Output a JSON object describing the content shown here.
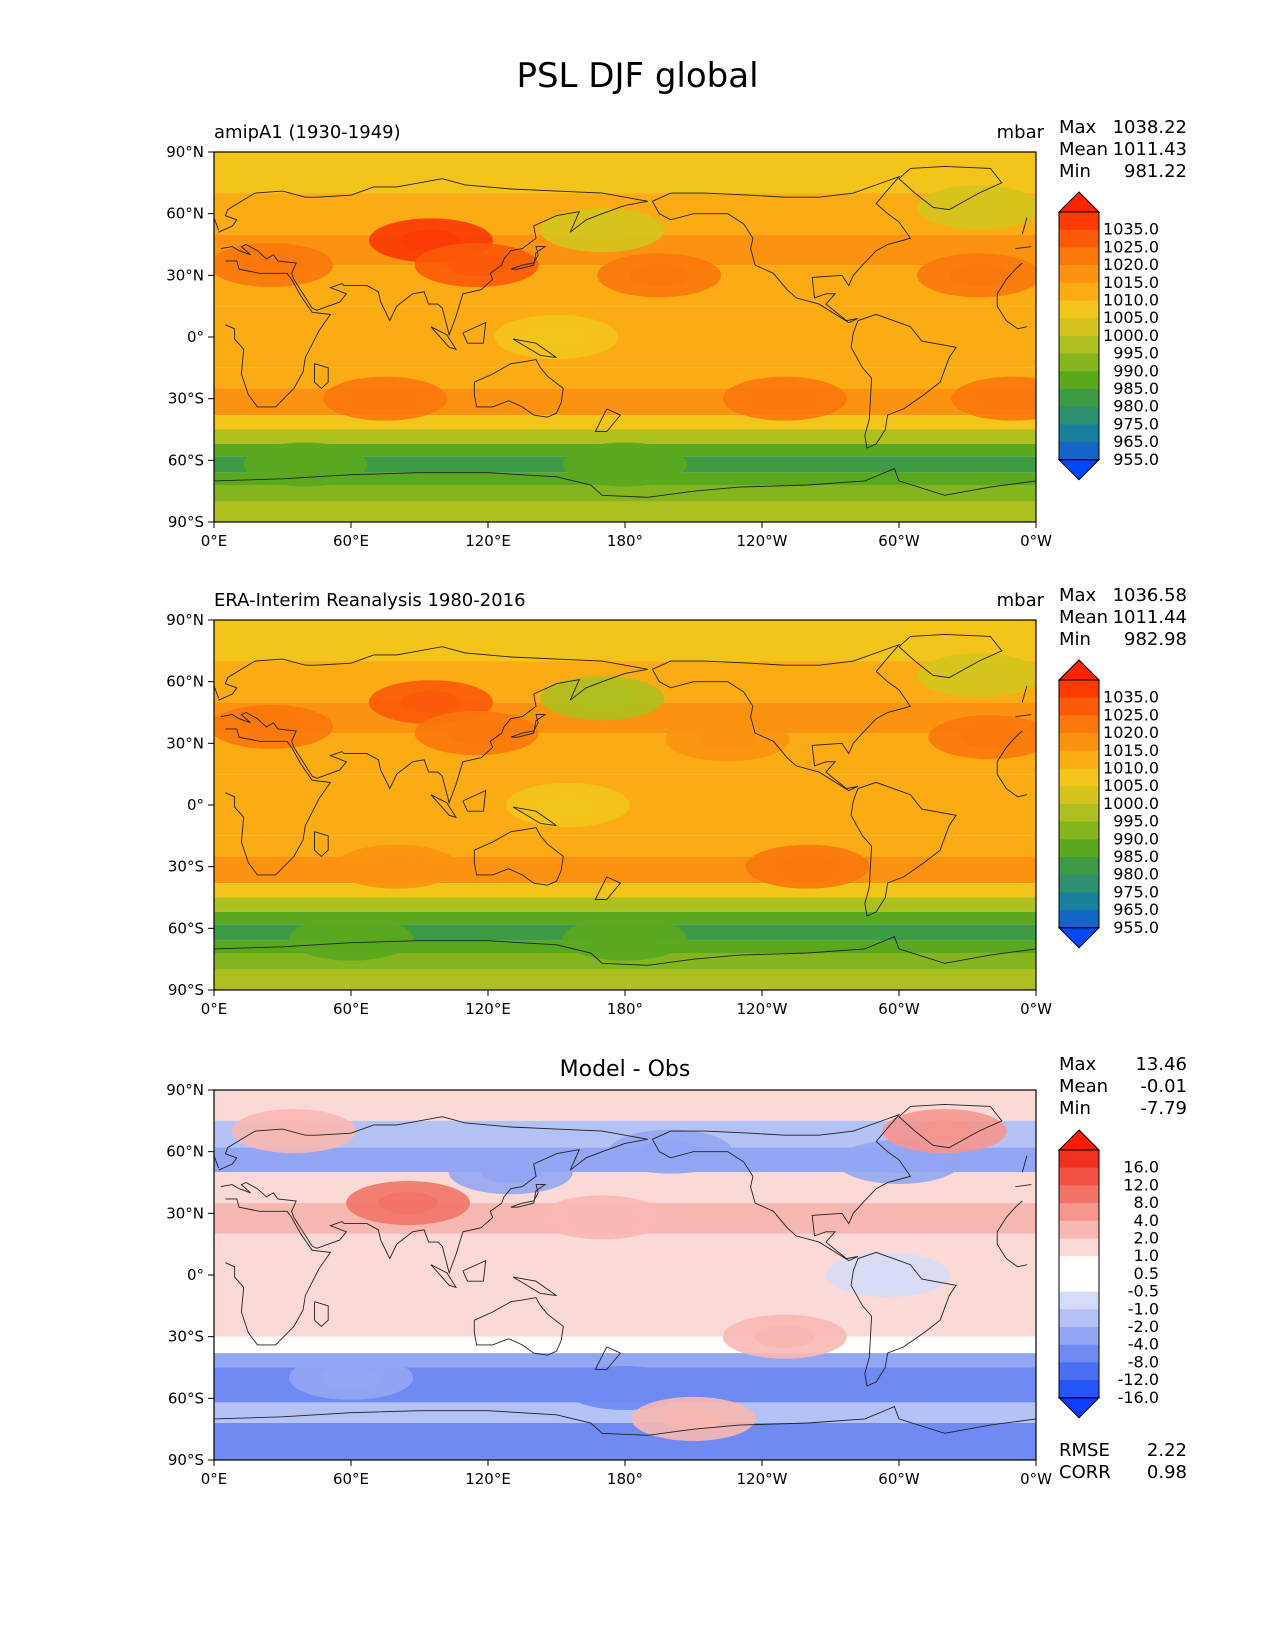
{
  "figure_title": "PSL DJF global",
  "x_ticks": [
    "0°E",
    "60°E",
    "120°E",
    "180°",
    "120°W",
    "60°W",
    "0°W"
  ],
  "y_ticks": [
    "90°N",
    "60°N",
    "30°N",
    "0°",
    "30°S",
    "60°S",
    "90°S"
  ],
  "panels": [
    {
      "left_title": "amipA1 (1930-1949)",
      "right_title": "mbar",
      "stats": {
        "max_label": "Max",
        "max": "1038.22",
        "mean_label": "Mean",
        "mean": "1011.43",
        "min_label": "Min",
        "min": "981.22"
      },
      "colorbar_labels": [
        "1035.0",
        "1025.0",
        "1020.0",
        "1015.0",
        "1010.0",
        "1005.0",
        "1000.0",
        "995.0",
        "990.0",
        "985.0",
        "980.0",
        "975.0",
        "965.0",
        "955.0"
      ]
    },
    {
      "left_title": "ERA-Interim Reanalysis 1980-2016",
      "right_title": "mbar",
      "stats": {
        "max_label": "Max",
        "max": "1036.58",
        "mean_label": "Mean",
        "mean": "1011.44",
        "min_label": "Min",
        "min": "982.98"
      },
      "colorbar_labels": [
        "1035.0",
        "1025.0",
        "1020.0",
        "1015.0",
        "1010.0",
        "1005.0",
        "1000.0",
        "995.0",
        "990.0",
        "985.0",
        "980.0",
        "975.0",
        "965.0",
        "955.0"
      ]
    },
    {
      "center_title": "Model - Obs",
      "stats": {
        "max_label": "Max",
        "max": "13.46",
        "mean_label": "Mean",
        "mean": "-0.01",
        "min_label": "Min",
        "min": "-7.79"
      },
      "colorbar_labels": [
        "16.0",
        "12.0",
        "8.0",
        "4.0",
        "2.0",
        "1.0",
        "0.5",
        "-0.5",
        "-1.0",
        "-2.0",
        "-4.0",
        "-8.0",
        "-12.0",
        "-16.0"
      ],
      "metrics": {
        "rmse_label": "RMSE",
        "rmse": "2.22",
        "corr_label": "CORR",
        "corr": "0.98"
      }
    }
  ],
  "colors": {
    "abs_scale": [
      "#0048ff",
      "#1565c8",
      "#1a7f9c",
      "#2f8f70",
      "#3d9a45",
      "#5aa81e",
      "#84b41e",
      "#adc01f",
      "#d4c41d",
      "#f3c41a",
      "#fbab14",
      "#fb9310",
      "#fb780c",
      "#fb5a08",
      "#fb3a04",
      "#ff2400"
    ],
    "diff_scale": [
      "#0a3dff",
      "#2455f5",
      "#4a6ff2",
      "#6f8af2",
      "#93a6f3",
      "#b5c2f5",
      "#d6dcf8",
      "#ffffff",
      "#ffffff",
      "#fbd9d6",
      "#f8b8b2",
      "#f5968e",
      "#f27468",
      "#f05243",
      "#f03020",
      "#ff1a00"
    ]
  },
  "chart_data": [
    {
      "type": "heatmap",
      "title": "amipA1 (1930-1949)",
      "units": "mbar",
      "xlim": [
        0,
        360
      ],
      "ylim": [
        -90,
        90
      ],
      "x_tick_values": [
        0,
        60,
        120,
        180,
        240,
        300,
        360
      ],
      "y_tick_values": [
        90,
        60,
        30,
        0,
        -30,
        -60,
        -90
      ],
      "max": 1038.22,
      "mean": 1011.43,
      "min": 981.22,
      "levels": [
        955,
        965,
        975,
        980,
        985,
        990,
        995,
        1000,
        1005,
        1010,
        1015,
        1020,
        1025,
        1035
      ],
      "features": [
        {
          "lon": 95,
          "lat": 47,
          "value": 1036
        },
        {
          "lon": 115,
          "lat": 35,
          "value": 1025
        },
        {
          "lon": 25,
          "lat": 35,
          "value": 1020
        },
        {
          "lon": 195,
          "lat": 30,
          "value": 1020
        },
        {
          "lon": 335,
          "lat": 30,
          "value": 1020
        },
        {
          "lon": 170,
          "lat": 52,
          "value": 1000
        },
        {
          "lon": 335,
          "lat": 63,
          "value": 1002
        },
        {
          "lon": 75,
          "lat": -30,
          "value": 1020
        },
        {
          "lon": 250,
          "lat": -30,
          "value": 1020
        },
        {
          "lon": 350,
          "lat": -30,
          "value": 1020
        },
        {
          "lon": 150,
          "lat": 0,
          "value": 1008
        },
        {
          "lon": 180,
          "lat": -62,
          "value": 986
        },
        {
          "lon": 40,
          "lat": -62,
          "value": 987
        }
      ]
    },
    {
      "type": "heatmap",
      "title": "ERA-Interim Reanalysis 1980-2016",
      "units": "mbar",
      "xlim": [
        0,
        360
      ],
      "ylim": [
        -90,
        90
      ],
      "x_tick_values": [
        0,
        60,
        120,
        180,
        240,
        300,
        360
      ],
      "y_tick_values": [
        90,
        60,
        30,
        0,
        -30,
        -60,
        -90
      ],
      "max": 1036.58,
      "mean": 1011.44,
      "min": 982.98,
      "levels": [
        955,
        965,
        975,
        980,
        985,
        990,
        995,
        1000,
        1005,
        1010,
        1015,
        1020,
        1025,
        1035
      ],
      "features": [
        {
          "lon": 95,
          "lat": 50,
          "value": 1033
        },
        {
          "lon": 115,
          "lat": 35,
          "value": 1022
        },
        {
          "lon": 25,
          "lat": 38,
          "value": 1020
        },
        {
          "lon": 225,
          "lat": 32,
          "value": 1019
        },
        {
          "lon": 340,
          "lat": 33,
          "value": 1020
        },
        {
          "lon": 170,
          "lat": 52,
          "value": 999
        },
        {
          "lon": 335,
          "lat": 63,
          "value": 1000
        },
        {
          "lon": 80,
          "lat": -30,
          "value": 1019
        },
        {
          "lon": 260,
          "lat": -30,
          "value": 1020
        },
        {
          "lon": 155,
          "lat": 0,
          "value": 1009
        },
        {
          "lon": 180,
          "lat": -65,
          "value": 986
        },
        {
          "lon": 60,
          "lat": -65,
          "value": 988
        }
      ]
    },
    {
      "type": "heatmap",
      "title": "Model - Obs",
      "units": "mbar",
      "xlim": [
        0,
        360
      ],
      "ylim": [
        -90,
        90
      ],
      "x_tick_values": [
        0,
        60,
        120,
        180,
        240,
        300,
        360
      ],
      "y_tick_values": [
        90,
        60,
        30,
        0,
        -30,
        -60,
        -90
      ],
      "max": 13.46,
      "mean": -0.01,
      "min": -7.79,
      "rmse": 2.22,
      "corr": 0.98,
      "levels": [
        -16,
        -12,
        -8,
        -4,
        -2,
        -1,
        -0.5,
        0.5,
        1,
        2,
        4,
        8,
        12,
        16
      ],
      "features": [
        {
          "lon": 85,
          "lat": 35,
          "value": 8
        },
        {
          "lon": 130,
          "lat": 50,
          "value": -3
        },
        {
          "lon": 200,
          "lat": 60,
          "value": -4
        },
        {
          "lon": 300,
          "lat": 55,
          "value": -3
        },
        {
          "lon": 320,
          "lat": 70,
          "value": 6
        },
        {
          "lon": 35,
          "lat": 70,
          "value": 3
        },
        {
          "lon": 180,
          "lat": -55,
          "value": -5
        },
        {
          "lon": 60,
          "lat": -50,
          "value": -4
        },
        {
          "lon": 250,
          "lat": -30,
          "value": 3
        },
        {
          "lon": 210,
          "lat": -70,
          "value": 2
        },
        {
          "lon": 170,
          "lat": 28,
          "value": 3
        },
        {
          "lon": 295,
          "lat": 0,
          "value": -1
        }
      ]
    }
  ]
}
